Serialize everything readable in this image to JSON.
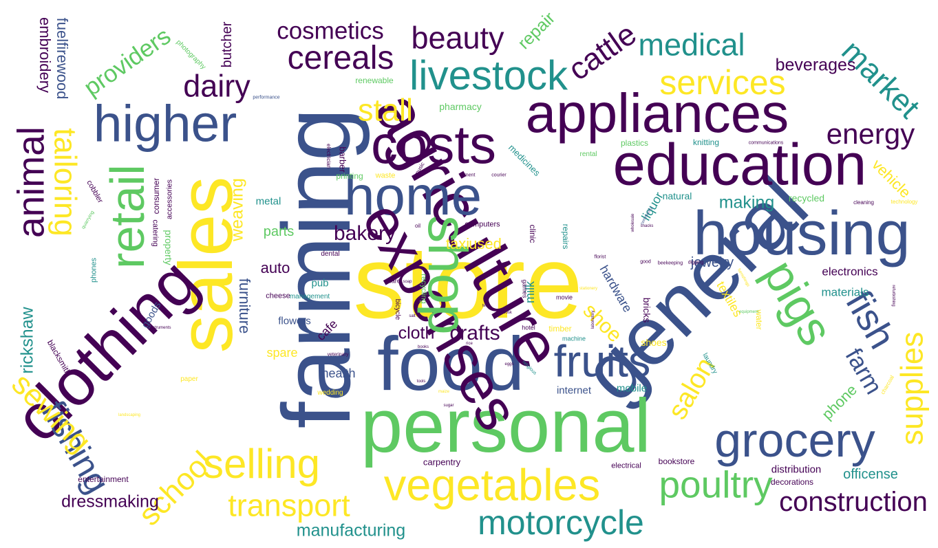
{
  "palette": {
    "purple": "#440154",
    "blue": "#3b528b",
    "teal": "#21918c",
    "green": "#5ec962",
    "yellow": "#fde725"
  },
  "words": [
    {
      "text": "store",
      "color": "yellow",
      "size": 150,
      "rotate": 0
    },
    {
      "text": "farming",
      "color": "blue",
      "size": 140,
      "rotate": 90
    },
    {
      "text": "general",
      "color": "blue",
      "size": 120,
      "rotate": 45
    },
    {
      "text": "personal",
      "color": "green",
      "size": 110,
      "rotate": 0
    },
    {
      "text": "sales",
      "color": "yellow",
      "size": 110,
      "rotate": 90
    },
    {
      "text": "food",
      "color": "blue",
      "size": 110,
      "rotate": 0
    },
    {
      "text": "agriculture",
      "color": "purple",
      "size": 95,
      "rotate": -60
    },
    {
      "text": "clothing",
      "color": "purple",
      "size": 95,
      "rotate": 45
    },
    {
      "text": "housing",
      "color": "blue",
      "size": 90,
      "rotate": 0
    },
    {
      "text": "education",
      "color": "purple",
      "size": 85,
      "rotate": 0
    },
    {
      "text": "appliances",
      "color": "purple",
      "size": 80,
      "rotate": 0
    },
    {
      "text": "home",
      "color": "blue",
      "size": 80,
      "rotate": 0
    },
    {
      "text": "costs",
      "color": "purple",
      "size": 78,
      "rotate": 0
    },
    {
      "text": "expenses",
      "color": "purple",
      "size": 85,
      "rotate": -60
    },
    {
      "text": "higher",
      "color": "blue",
      "size": 75,
      "rotate": 0
    },
    {
      "text": "shop",
      "color": "green",
      "size": 80,
      "rotate": -90
    },
    {
      "text": "fruits",
      "color": "blue",
      "size": 65,
      "rotate": 0
    },
    {
      "text": "grocery",
      "color": "blue",
      "size": 70,
      "rotate": 0
    },
    {
      "text": "vegetables",
      "color": "yellow",
      "size": 65,
      "rotate": 0
    },
    {
      "text": "retail",
      "color": "green",
      "size": 70,
      "rotate": 90
    },
    {
      "text": "pigs",
      "color": "green",
      "size": 70,
      "rotate": -60
    },
    {
      "text": "livestock",
      "color": "teal",
      "size": 60,
      "rotate": 0
    },
    {
      "text": "animal",
      "color": "purple",
      "size": 55,
      "rotate": 90
    },
    {
      "text": "selling",
      "color": "yellow",
      "size": 60,
      "rotate": 0
    },
    {
      "text": "motorcycle",
      "color": "teal",
      "size": 50,
      "rotate": 0
    },
    {
      "text": "poultry",
      "color": "green",
      "size": 55,
      "rotate": 0
    },
    {
      "text": "fish",
      "color": "blue",
      "size": 55,
      "rotate": -60
    },
    {
      "text": "services",
      "color": "yellow",
      "size": 50,
      "rotate": 0
    },
    {
      "text": "cereals",
      "color": "purple",
      "size": 48,
      "rotate": 0
    },
    {
      "text": "construction",
      "color": "purple",
      "size": 40,
      "rotate": 0
    },
    {
      "text": "transport",
      "color": "yellow",
      "size": 45,
      "rotate": 0
    },
    {
      "text": "medical",
      "color": "teal",
      "size": 45,
      "rotate": 0
    },
    {
      "text": "energy",
      "color": "purple",
      "size": 42,
      "rotate": 0
    },
    {
      "text": "dairy",
      "color": "purple",
      "size": 45,
      "rotate": 0
    },
    {
      "text": "beauty",
      "color": "purple",
      "size": 45,
      "rotate": 0
    },
    {
      "text": "cattle",
      "color": "purple",
      "size": 45,
      "rotate": 35
    },
    {
      "text": "fishing",
      "color": "blue",
      "size": 50,
      "rotate": -60
    },
    {
      "text": "school",
      "color": "yellow",
      "size": 45,
      "rotate": 45
    },
    {
      "text": "sewing",
      "color": "yellow",
      "size": 45,
      "rotate": -45
    },
    {
      "text": "tailoring",
      "color": "yellow",
      "size": 45,
      "rotate": -90
    },
    {
      "text": "supplies",
      "color": "yellow",
      "size": 45,
      "rotate": 90
    },
    {
      "text": "market",
      "color": "teal",
      "size": 45,
      "rotate": -45
    },
    {
      "text": "salon",
      "color": "yellow",
      "size": 40,
      "rotate": 60
    },
    {
      "text": "cosmetics",
      "color": "purple",
      "size": 35,
      "rotate": 0
    },
    {
      "text": "stall",
      "color": "yellow",
      "size": 45,
      "rotate": 0
    },
    {
      "text": "bakery",
      "color": "purple",
      "size": 30,
      "rotate": 0
    },
    {
      "text": "crafts",
      "color": "purple",
      "size": 30,
      "rotate": 0
    },
    {
      "text": "cloth",
      "color": "purple",
      "size": 25,
      "rotate": 0
    },
    {
      "text": "farm",
      "color": "blue",
      "size": 35,
      "rotate": -60
    },
    {
      "text": "shoe",
      "color": "yellow",
      "size": 30,
      "rotate": -45
    },
    {
      "text": "dressmaking",
      "color": "purple",
      "size": 25,
      "rotate": 0
    },
    {
      "text": "manufacturing",
      "color": "teal",
      "size": 25,
      "rotate": 0
    },
    {
      "text": "providers",
      "color": "green",
      "size": 35,
      "rotate": 35
    },
    {
      "text": "rickshaw",
      "color": "teal",
      "size": 25,
      "rotate": 90
    },
    {
      "text": "weaving",
      "color": "yellow",
      "size": 25,
      "rotate": 90
    },
    {
      "text": "furniture",
      "color": "blue",
      "size": 22,
      "rotate": -90
    },
    {
      "text": "beverages",
      "color": "purple",
      "size": 25,
      "rotate": 0
    },
    {
      "text": "making",
      "color": "teal",
      "size": 25,
      "rotate": 0
    },
    {
      "text": "embroidery",
      "color": "purple",
      "size": 22,
      "rotate": -90
    },
    {
      "text": "fuelfirewood",
      "color": "blue",
      "size": 22,
      "rotate": -90
    },
    {
      "text": "butcher",
      "color": "purple",
      "size": 20,
      "rotate": 90
    },
    {
      "text": "repair",
      "color": "green",
      "size": 25,
      "rotate": 45
    },
    {
      "text": "vehicle",
      "color": "yellow",
      "size": 22,
      "rotate": -45
    },
    {
      "text": "phone",
      "color": "green",
      "size": 22,
      "rotate": 45
    },
    {
      "text": "officense",
      "color": "teal",
      "size": 20,
      "rotate": 0
    },
    {
      "text": "auto",
      "color": "purple",
      "size": 22,
      "rotate": 0
    },
    {
      "text": "jewelry",
      "color": "blue",
      "size": 20,
      "rotate": 0
    },
    {
      "text": "electronics",
      "color": "purple",
      "size": 17,
      "rotate": 0
    },
    {
      "text": "hardware",
      "color": "blue",
      "size": 18,
      "rotate": -60
    },
    {
      "text": "textiles",
      "color": "yellow",
      "size": 18,
      "rotate": -60
    },
    {
      "text": "materials",
      "color": "teal",
      "size": 17,
      "rotate": 0
    },
    {
      "text": "liquor",
      "color": "teal",
      "size": 18,
      "rotate": 60
    },
    {
      "text": "parts",
      "color": "green",
      "size": 20,
      "rotate": 0
    },
    {
      "text": "health",
      "color": "blue",
      "size": 18,
      "rotate": 0
    },
    {
      "text": "cafe",
      "color": "purple",
      "size": 18,
      "rotate": 45
    },
    {
      "text": "metal",
      "color": "teal",
      "size": 15,
      "rotate": 0
    },
    {
      "text": "spare",
      "color": "yellow",
      "size": 18,
      "rotate": 0
    },
    {
      "text": "pub",
      "color": "teal",
      "size": 15,
      "rotate": 0
    },
    {
      "text": "flowers",
      "color": "blue",
      "size": 15,
      "rotate": 0
    },
    {
      "text": "goods",
      "color": "blue",
      "size": 15,
      "rotate": 60
    },
    {
      "text": "entertainment",
      "color": "purple",
      "size": 12,
      "rotate": 0
    },
    {
      "text": "distribution",
      "color": "purple",
      "size": 15,
      "rotate": 0
    },
    {
      "text": "decorations",
      "color": "purple",
      "size": 12,
      "rotate": 0
    },
    {
      "text": "bookstore",
      "color": "purple",
      "size": 12,
      "rotate": 0
    },
    {
      "text": "carpentry",
      "color": "purple",
      "size": 13,
      "rotate": 0
    },
    {
      "text": "electrical",
      "color": "purple",
      "size": 11,
      "rotate": 0
    },
    {
      "text": "mobile",
      "color": "teal",
      "size": 15,
      "rotate": 0
    },
    {
      "text": "internet",
      "color": "blue",
      "size": 15,
      "rotate": 0
    },
    {
      "text": "natural",
      "color": "teal",
      "size": 14,
      "rotate": 0
    },
    {
      "text": "recycled",
      "color": "green",
      "size": 14,
      "rotate": 0
    },
    {
      "text": "plastics",
      "color": "green",
      "size": 12,
      "rotate": 0
    },
    {
      "text": "knitting",
      "color": "teal",
      "size": 12,
      "rotate": 0
    },
    {
      "text": "medicines",
      "color": "teal",
      "size": 13,
      "rotate": -45
    },
    {
      "text": "pharmacy",
      "color": "green",
      "size": 14,
      "rotate": 0
    },
    {
      "text": "renewable",
      "color": "green",
      "size": 12,
      "rotate": 0
    },
    {
      "text": "photography",
      "color": "green",
      "size": 10,
      "rotate": -45
    },
    {
      "text": "barber",
      "color": "purple",
      "size": 13,
      "rotate": -90
    },
    {
      "text": "printing",
      "color": "green",
      "size": 12,
      "rotate": 0
    },
    {
      "text": "waste",
      "color": "yellow",
      "size": 11,
      "rotate": 0
    },
    {
      "text": "cobbler",
      "color": "purple",
      "size": 11,
      "rotate": -60
    },
    {
      "text": "consumer",
      "color": "purple",
      "size": 12,
      "rotate": 90
    },
    {
      "text": "accessories",
      "color": "purple",
      "size": 11,
      "rotate": 90
    },
    {
      "text": "property",
      "color": "green",
      "size": 14,
      "rotate": -90
    },
    {
      "text": "catering",
      "color": "purple",
      "size": 11,
      "rotate": -90
    },
    {
      "text": "phones",
      "color": "teal",
      "size": 11,
      "rotate": 90
    },
    {
      "text": "blacksmith",
      "color": "purple",
      "size": 12,
      "rotate": -60
    },
    {
      "text": "cheese",
      "color": "purple",
      "size": 11,
      "rotate": 0
    },
    {
      "text": "management",
      "color": "teal",
      "size": 10,
      "rotate": 0
    },
    {
      "text": "dental",
      "color": "purple",
      "size": 10,
      "rotate": 0
    },
    {
      "text": "clinic",
      "color": "purple",
      "size": 12,
      "rotate": -90
    },
    {
      "text": "repairs",
      "color": "teal",
      "size": 12,
      "rotate": -90
    },
    {
      "text": "milk",
      "color": "teal",
      "size": 18,
      "rotate": 90
    },
    {
      "text": "bricks",
      "color": "purple",
      "size": 14,
      "rotate": -90
    },
    {
      "text": "timber",
      "color": "yellow",
      "size": 12,
      "rotate": 0
    },
    {
      "text": "water",
      "color": "yellow",
      "size": 12,
      "rotate": -90
    },
    {
      "text": "shoes",
      "color": "yellow",
      "size": 14,
      "rotate": 0
    },
    {
      "text": "laundry",
      "color": "teal",
      "size": 10,
      "rotate": -60
    },
    {
      "text": "wedding",
      "color": "yellow",
      "size": 10,
      "rotate": 0
    },
    {
      "text": "paper",
      "color": "yellow",
      "size": 10,
      "rotate": 0
    },
    {
      "text": "machine",
      "color": "teal",
      "size": 9,
      "rotate": 0
    },
    {
      "text": "recycling",
      "color": "green",
      "size": 11,
      "rotate": -90
    },
    {
      "text": "bicycle",
      "color": "purple",
      "size": 10,
      "rotate": -90
    },
    {
      "text": "care",
      "color": "purple",
      "size": 9,
      "rotate": 0
    },
    {
      "text": "computers",
      "color": "purple",
      "size": 11,
      "rotate": 0
    },
    {
      "text": "taxi",
      "color": "yellow",
      "size": 22,
      "rotate": 0
    },
    {
      "text": "used",
      "color": "yellow",
      "size": 22,
      "rotate": 0
    },
    {
      "text": "cleaning",
      "color": "purple",
      "size": 8,
      "rotate": 0
    },
    {
      "text": "technology",
      "color": "yellow",
      "size": 8,
      "rotate": 0
    },
    {
      "text": "communications",
      "color": "purple",
      "size": 7,
      "rotate": 0
    },
    {
      "text": "electrician",
      "color": "purple",
      "size": 8,
      "rotate": -90
    },
    {
      "text": "performance",
      "color": "blue",
      "size": 7,
      "rotate": 0
    },
    {
      "text": "rental",
      "color": "green",
      "size": 10,
      "rotate": 0
    },
    {
      "text": "movie",
      "color": "purple",
      "size": 9,
      "rotate": 0
    },
    {
      "text": "hotel",
      "color": "purple",
      "size": 9,
      "rotate": 0
    },
    {
      "text": "games",
      "color": "purple",
      "size": 9,
      "rotate": -90
    },
    {
      "text": "music",
      "color": "purple",
      "size": 8,
      "rotate": 60
    },
    {
      "text": "instruments",
      "color": "purple",
      "size": 6,
      "rotate": 0
    },
    {
      "text": "quarrying",
      "color": "green",
      "size": 7,
      "rotate": 60
    },
    {
      "text": "veterinary",
      "color": "purple",
      "size": 7,
      "rotate": 0
    },
    {
      "text": "religious",
      "color": "teal",
      "size": 7,
      "rotate": -45
    },
    {
      "text": "cement",
      "color": "purple",
      "size": 7,
      "rotate": 0
    },
    {
      "text": "courier",
      "color": "purple",
      "size": 7,
      "rotate": 0
    },
    {
      "text": "florist",
      "color": "purple",
      "size": 7,
      "rotate": 0
    },
    {
      "text": "good",
      "color": "purple",
      "size": 7,
      "rotate": 0
    },
    {
      "text": "beekeeping",
      "color": "purple",
      "size": 7,
      "rotate": 0
    },
    {
      "text": "digging",
      "color": "purple",
      "size": 7,
      "rotate": 0
    },
    {
      "text": "laboratory",
      "color": "purple",
      "size": 6,
      "rotate": 90
    },
    {
      "text": "wholesale",
      "color": "purple",
      "size": 6,
      "rotate": 90
    },
    {
      "text": "community",
      "color": "blue",
      "size": 6,
      "rotate": 60
    },
    {
      "text": "equipment",
      "color": "green",
      "size": 6,
      "rotate": 0
    },
    {
      "text": "landscaping",
      "color": "yellow",
      "size": 6,
      "rotate": 0
    },
    {
      "text": "stationery",
      "color": "yellow",
      "size": 6,
      "rotate": 0
    },
    {
      "text": "furnishings",
      "color": "yellow",
      "size": 6,
      "rotate": -60
    },
    {
      "text": "refurbishing",
      "color": "purple",
      "size": 6,
      "rotate": -90
    },
    {
      "text": "charcoal",
      "color": "yellow",
      "size": 8,
      "rotate": 60
    },
    {
      "text": "snacks",
      "color": "purple",
      "size": 6,
      "rotate": 0
    },
    {
      "text": "kiosk",
      "color": "purple",
      "size": 6,
      "rotate": 0
    },
    {
      "text": "oil",
      "color": "purple",
      "size": 8,
      "rotate": 0
    },
    {
      "text": "soap",
      "color": "purple",
      "size": 6,
      "rotate": 0
    },
    {
      "text": "books",
      "color": "purple",
      "size": 6,
      "rotate": 0
    },
    {
      "text": "maize",
      "color": "yellow",
      "size": 6,
      "rotate": 0
    },
    {
      "text": "rice",
      "color": "purple",
      "size": 6,
      "rotate": 0
    },
    {
      "text": "tea",
      "color": "purple",
      "size": 6,
      "rotate": 0
    },
    {
      "text": "sugar",
      "color": "purple",
      "size": 6,
      "rotate": 0
    },
    {
      "text": "salt",
      "color": "purple",
      "size": 6,
      "rotate": 0
    },
    {
      "text": "eggs",
      "color": "purple",
      "size": 6,
      "rotate": 0
    },
    {
      "text": "tools",
      "color": "purple",
      "size": 6,
      "rotate": 0
    }
  ]
}
